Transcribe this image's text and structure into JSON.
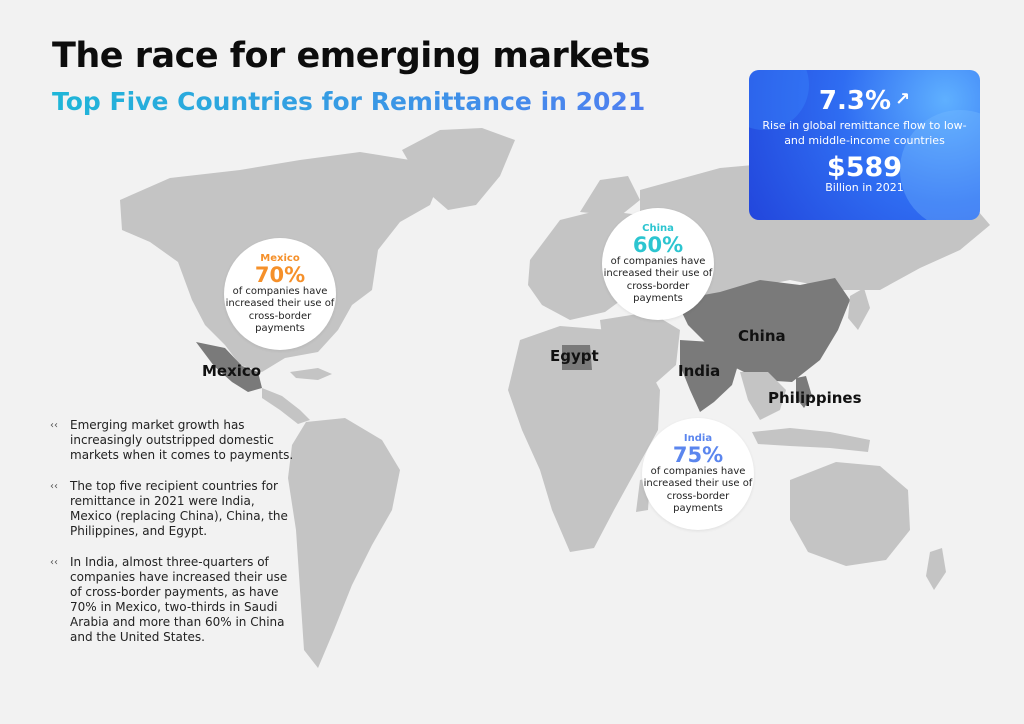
{
  "header": {
    "title": "The race for emerging markets",
    "subtitle": "Top Five Countries for Remittance in 2021"
  },
  "stat_card": {
    "percent": "7.3%",
    "trend_icon": "trend-up-icon",
    "description": "Rise in global remittance flow to low-and middle-income countries",
    "amount": "$589",
    "amount_label": "Billion in 2021"
  },
  "bubbles": {
    "mexico": {
      "name": "Mexico",
      "percent": "70%",
      "description": "of companies have increased their use of cross-border payments",
      "color": "#f5902a"
    },
    "china": {
      "name": "China",
      "percent": "60%",
      "description": "of companies have increased their use of cross-border payments",
      "color": "#2cc5d0"
    },
    "india": {
      "name": "India",
      "percent": "75%",
      "description": "of companies have increased their use of cross-border payments",
      "color": "#5b86ee"
    }
  },
  "map_labels": {
    "mexico": "Mexico",
    "egypt": "Egypt",
    "china": "China",
    "india": "India",
    "philippines": "Philippines"
  },
  "notes": [
    "Emerging market growth has increasingly outstripped domestic markets when it comes to payments.",
    "The top five recipient countries for remittance in 2021 were India, Mexico (replacing China), China, the Philippines, and Egypt.",
    "In India, almost three-quarters of companies have increased their use of cross-border payments, as have 70% in Mexico, two-thirds in Saudi Arabia and more than 60% in China and the United States."
  ],
  "note_bullet": "‹‹",
  "colors": {
    "land": "#c4c4c4",
    "highlight": "#7a7a7a",
    "background": "#f2f2f2",
    "card_blue": "#2f6df2"
  }
}
